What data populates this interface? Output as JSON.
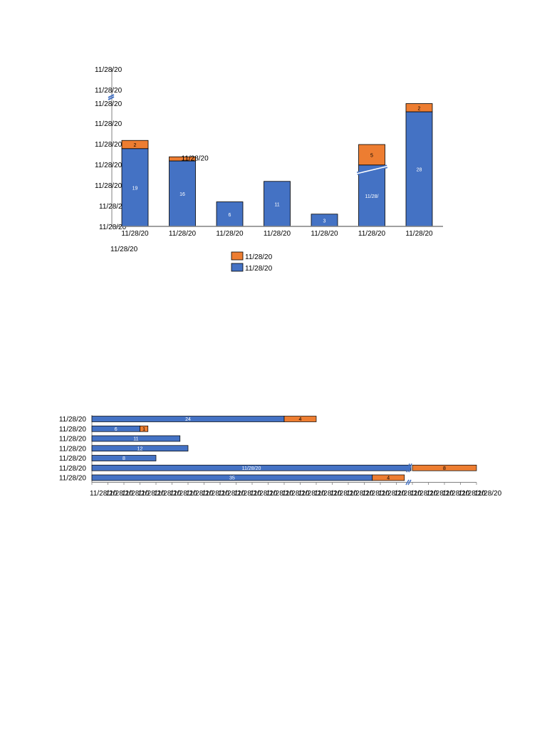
{
  "colors": {
    "series_top": "#ED7D31",
    "series_base": "#4472C4",
    "axis": "#808080",
    "break_mark": "#4472C4",
    "text": "#000000",
    "label_light": "#ffffff"
  },
  "chart_data": [
    {
      "type": "bar",
      "orientation": "vertical",
      "stacked": true,
      "categories": [
        "11/28/20",
        "11/28/20",
        "11/28/20",
        "11/28/20",
        "11/28/20",
        "11/28/20",
        "11/28/20"
      ],
      "series": [
        {
          "values": [
            19,
            16,
            6,
            11,
            3,
            33,
            28
          ],
          "data_labels": [
            "19",
            "16",
            "6",
            "11",
            "3",
            "11/28/",
            "28"
          ]
        },
        {
          "values": [
            2,
            1,
            0,
            0,
            0,
            5,
            2
          ],
          "data_labels": [
            "2",
            "11/28/20",
            "",
            "",
            "",
            "5",
            "2"
          ]
        }
      ],
      "y_tick_labels": [
        "11/28/20",
        "11/28/20",
        "11/28/20",
        "11/28/20",
        "11/28/20",
        "11/28/20",
        "11/28/20",
        "11/28/20",
        "11/28/20"
      ],
      "extra_label": "11/28/20",
      "legend": [
        "11/28/20",
        "11/28/20"
      ],
      "legend_position": "bottom",
      "axis_break": true,
      "grid": false
    },
    {
      "type": "bar",
      "orientation": "horizontal",
      "stacked": true,
      "categories": [
        "11/28/20",
        "11/28/20",
        "11/28/20",
        "11/28/20",
        "11/28/20",
        "11/28/20",
        "11/28/20"
      ],
      "series": [
        {
          "values": [
            24,
            6,
            11,
            12,
            8,
            40,
            35
          ],
          "data_labels": [
            "24",
            "6",
            "11",
            "12",
            "8",
            "11/28/20",
            "35"
          ]
        },
        {
          "values": [
            4,
            1,
            0,
            0,
            0,
            8,
            4
          ],
          "data_labels": [
            "4",
            "1",
            "",
            "",
            "",
            "8",
            "4"
          ]
        }
      ],
      "x_tick_labels": [
        "11/28/20",
        "11/28/20",
        "11/28/20",
        "11/28/20",
        "11/28/20",
        "11/28/20",
        "11/28/20",
        "11/28/20",
        "11/28/20",
        "11/28/20",
        "11/28/20",
        "11/28/20",
        "11/28/20",
        "11/28/20",
        "11/28/20",
        "11/28/20",
        "11/28/20",
        "11/28/20",
        "11/28/20",
        "11/28/20",
        "11/28/20",
        "11/28/20",
        "11/28/20",
        "11/28/20",
        "11/28/20"
      ],
      "axis_break": true,
      "grid": false
    }
  ]
}
